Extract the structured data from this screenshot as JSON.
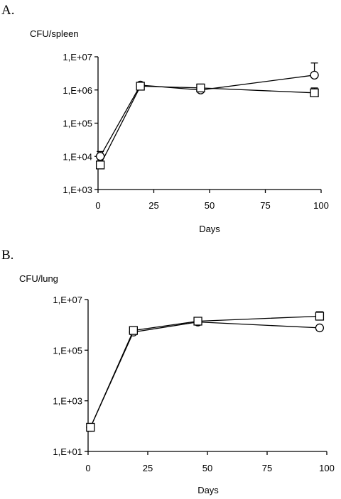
{
  "chart_data": [
    {
      "type": "line",
      "panel_label": "A.",
      "title": "",
      "ylabel": "CFU/spleen",
      "xlabel": "Days",
      "xlim": [
        0,
        100
      ],
      "x_ticks": [
        0,
        25,
        50,
        75,
        100
      ],
      "x_tick_labels": [
        "0",
        "25",
        "50",
        "75",
        "100"
      ],
      "y_scale": "log",
      "ylim": [
        1000,
        10000000
      ],
      "y_ticks": [
        1000,
        10000,
        100000,
        1000000,
        10000000
      ],
      "y_tick_labels": [
        "1,E+03",
        "1,E+04",
        "1,E+05",
        "1,E+06",
        "1,E+07"
      ],
      "grid": false,
      "series": [
        {
          "marker": "circle",
          "x": [
            1,
            19,
            46,
            97
          ],
          "y": [
            10000,
            1400000,
            1000000,
            2800000
          ],
          "err_upper": [
            14000,
            1700000,
            1400000,
            6500000
          ]
        },
        {
          "marker": "square",
          "x": [
            1,
            19,
            46,
            97
          ],
          "y": [
            5500,
            1300000,
            1150000,
            820000
          ],
          "err_upper": [
            null,
            1600000,
            1500000,
            1150000
          ]
        }
      ]
    },
    {
      "type": "line",
      "panel_label": "B.",
      "title": "",
      "ylabel": "CFU/lung",
      "xlabel": "Days",
      "xlim": [
        0,
        100
      ],
      "x_ticks": [
        0,
        25,
        50,
        75,
        100
      ],
      "x_tick_labels": [
        "0",
        "25",
        "50",
        "75",
        "100"
      ],
      "y_scale": "log",
      "ylim": [
        10,
        10000000
      ],
      "y_ticks": [
        10,
        1000,
        100000,
        10000000
      ],
      "y_tick_labels": [
        "1,E+01",
        "1,E+03",
        "1,E+05",
        "1,E+07"
      ],
      "grid": false,
      "series": [
        {
          "marker": "circle",
          "x": [
            1,
            19,
            46,
            97
          ],
          "y": [
            90,
            520000,
            1300000,
            760000
          ],
          "err_upper": [
            null,
            null,
            null,
            null
          ]
        },
        {
          "marker": "square",
          "x": [
            1,
            19,
            46,
            97
          ],
          "y": [
            90,
            600000,
            1400000,
            2200000
          ],
          "err_upper": [
            null,
            null,
            1650000,
            3300000
          ]
        }
      ]
    }
  ]
}
